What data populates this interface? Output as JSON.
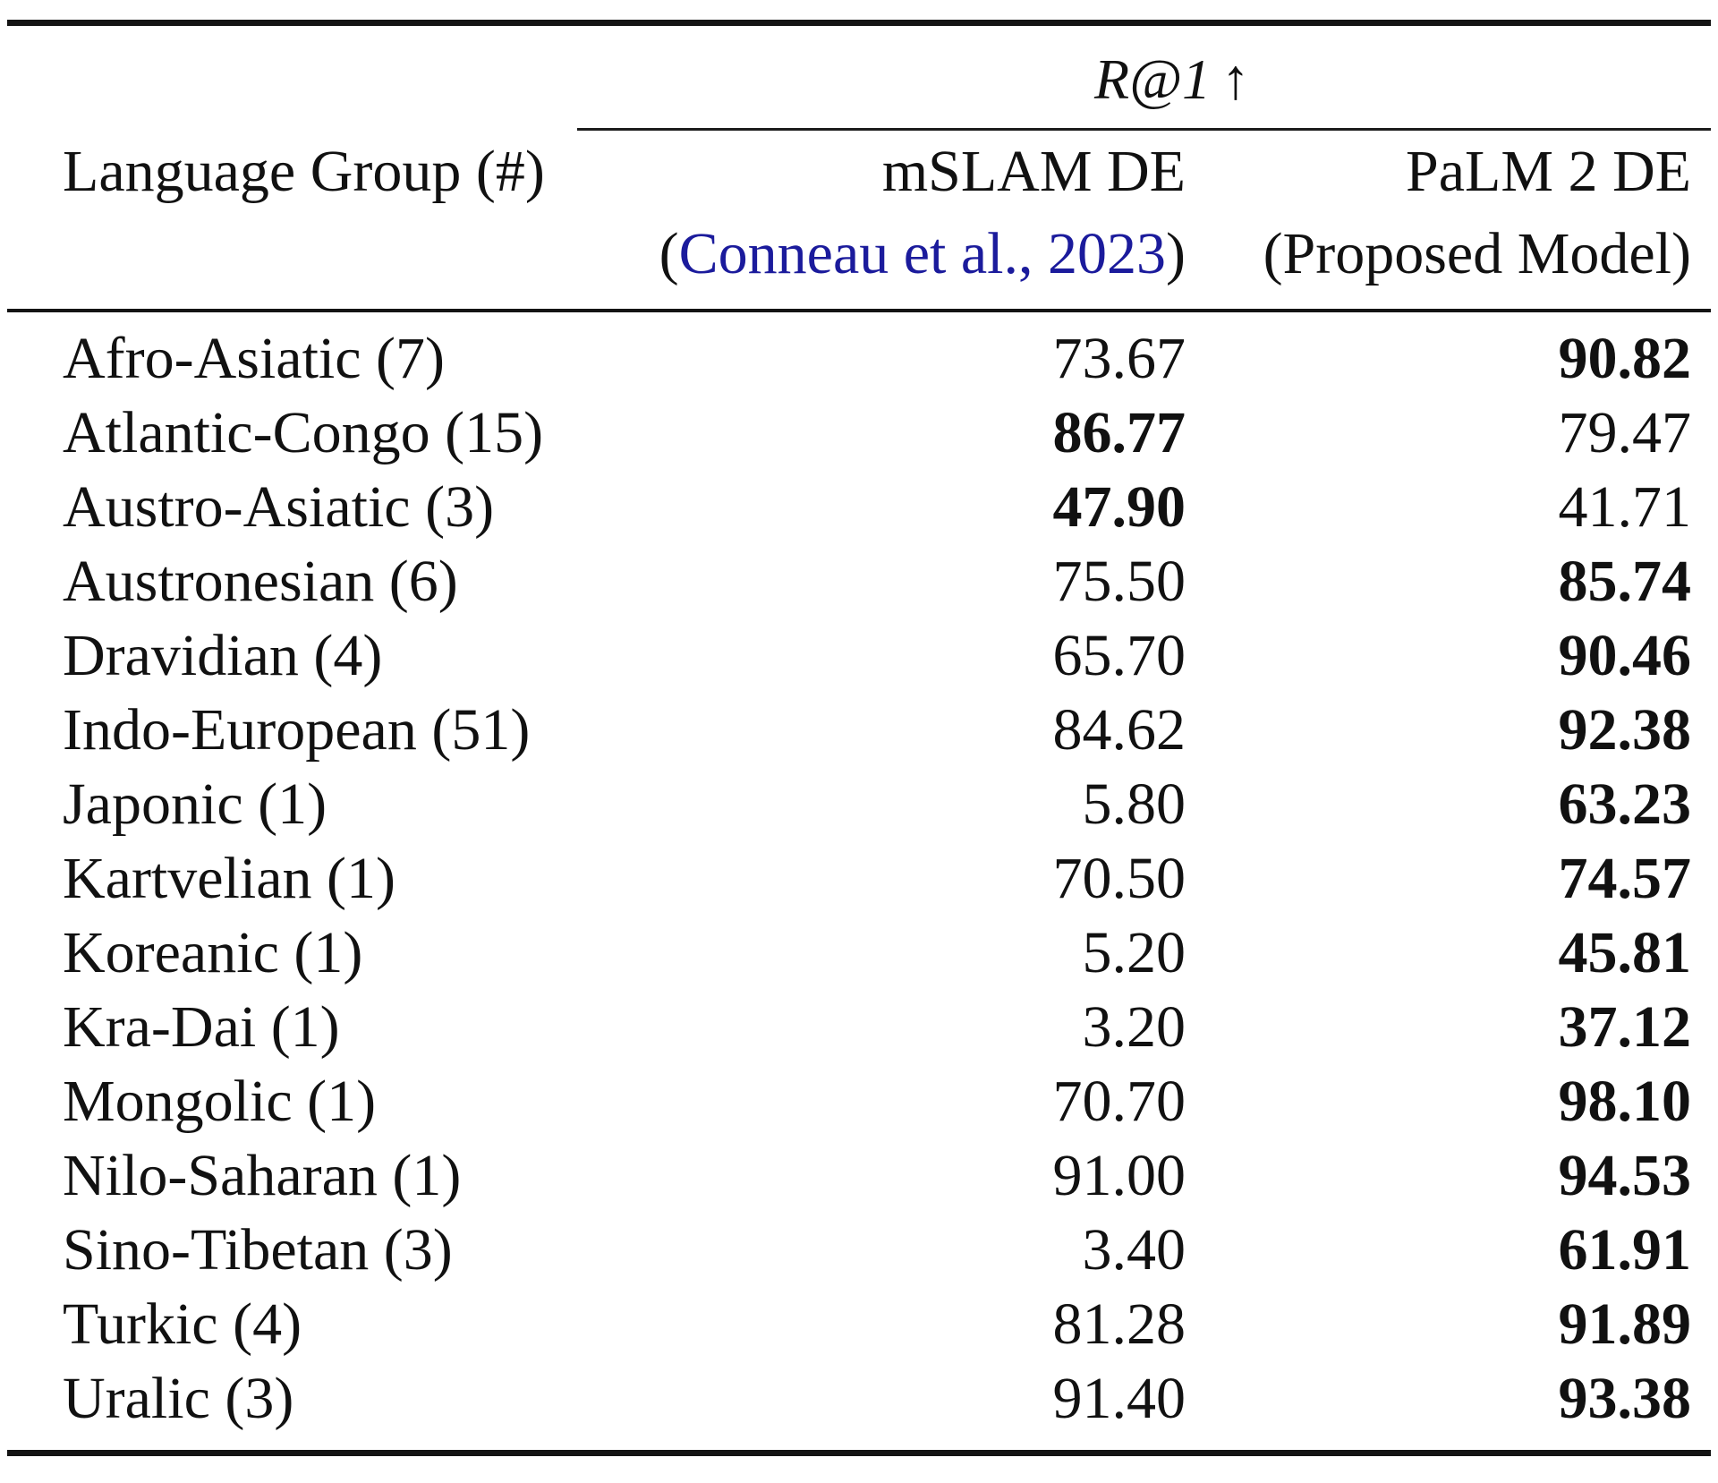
{
  "table": {
    "header": {
      "metric": "R@1",
      "metric_arrow": "↑",
      "language_group": "Language Group (#)",
      "mslam": {
        "name": "mSLAM DE",
        "cite_prefix": "(",
        "cite_link": "Conneau et al., 2023",
        "cite_suffix": ")"
      },
      "palm": {
        "name": "PaLM 2 DE",
        "subtitle": "(Proposed Model)"
      }
    },
    "rows": [
      {
        "group": "Afro-Asiatic (7)",
        "mslam": "73.67",
        "mslam_bold": false,
        "palm": "90.82",
        "palm_bold": true
      },
      {
        "group": "Atlantic-Congo (15)",
        "mslam": "86.77",
        "mslam_bold": true,
        "palm": "79.47",
        "palm_bold": false
      },
      {
        "group": "Austro-Asiatic (3)",
        "mslam": "47.90",
        "mslam_bold": true,
        "palm": "41.71",
        "palm_bold": false
      },
      {
        "group": "Austronesian (6)",
        "mslam": "75.50",
        "mslam_bold": false,
        "palm": "85.74",
        "palm_bold": true
      },
      {
        "group": "Dravidian (4)",
        "mslam": "65.70",
        "mslam_bold": false,
        "palm": "90.46",
        "palm_bold": true
      },
      {
        "group": "Indo-European (51)",
        "mslam": "84.62",
        "mslam_bold": false,
        "palm": "92.38",
        "palm_bold": true
      },
      {
        "group": "Japonic (1)",
        "mslam": "5.80",
        "mslam_bold": false,
        "palm": "63.23",
        "palm_bold": true
      },
      {
        "group": "Kartvelian (1)",
        "mslam": "70.50",
        "mslam_bold": false,
        "palm": "74.57",
        "palm_bold": true
      },
      {
        "group": "Koreanic (1)",
        "mslam": "5.20",
        "mslam_bold": false,
        "palm": "45.81",
        "palm_bold": true
      },
      {
        "group": "Kra-Dai (1)",
        "mslam": "3.20",
        "mslam_bold": false,
        "palm": "37.12",
        "palm_bold": true
      },
      {
        "group": "Mongolic (1)",
        "mslam": "70.70",
        "mslam_bold": false,
        "palm": "98.10",
        "palm_bold": true
      },
      {
        "group": "Nilo-Saharan (1)",
        "mslam": "91.00",
        "mslam_bold": false,
        "palm": "94.53",
        "palm_bold": true
      },
      {
        "group": "Sino-Tibetan (3)",
        "mslam": "3.40",
        "mslam_bold": false,
        "palm": "61.91",
        "palm_bold": true
      },
      {
        "group": "Turkic (4)",
        "mslam": "81.28",
        "mslam_bold": false,
        "palm": "91.89",
        "palm_bold": true
      },
      {
        "group": "Uralic (3)",
        "mslam": "91.40",
        "mslam_bold": false,
        "palm": "93.38",
        "palm_bold": true
      }
    ]
  },
  "colors": {
    "citation_link": "#1b1b9c",
    "text": "#111111",
    "rule": "#141414"
  }
}
